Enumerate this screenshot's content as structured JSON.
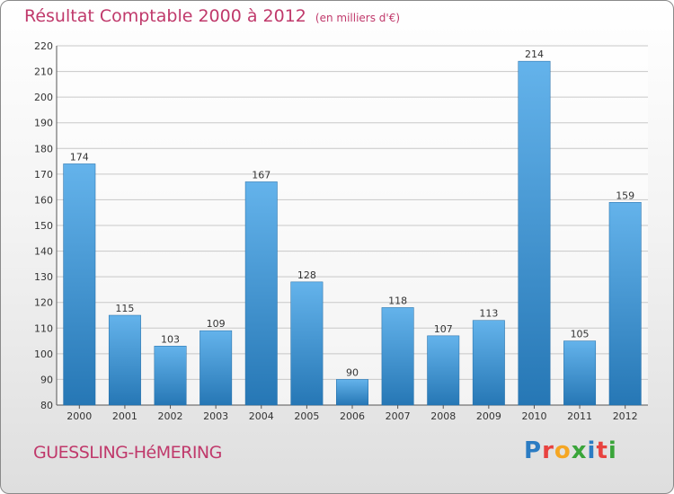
{
  "title": "Résultat Comptable 2000 à 2012",
  "subtitle": "(en milliers d'€)",
  "commune": "GUESSLING-HéMERING",
  "logo": {
    "letters": [
      "P",
      "r",
      "o",
      "x",
      "i",
      "t",
      "i"
    ]
  },
  "colors": {
    "title": "#c0396b",
    "bar_light": "#64b3eb",
    "bar_dark": "#2677b5",
    "logo": [
      "#2b7cc3",
      "#e8423f",
      "#f5a623",
      "#3aa53a",
      "#2b7cc3",
      "#e8423f",
      "#3aa53a"
    ]
  },
  "chart_data": {
    "type": "bar",
    "title": "Résultat Comptable 2000 à 2012",
    "subtitle": "(en milliers d'€)",
    "xlabel": "",
    "ylabel": "",
    "categories": [
      "2000",
      "2001",
      "2002",
      "2003",
      "2004",
      "2005",
      "2006",
      "2007",
      "2008",
      "2009",
      "2010",
      "2011",
      "2012"
    ],
    "values": [
      174,
      115,
      103,
      109,
      167,
      128,
      90,
      118,
      107,
      113,
      214,
      105,
      159
    ],
    "ylim": [
      80,
      220
    ],
    "yticks": [
      80,
      90,
      100,
      110,
      120,
      130,
      140,
      150,
      160,
      170,
      180,
      190,
      200,
      210,
      220
    ],
    "grid": true
  }
}
